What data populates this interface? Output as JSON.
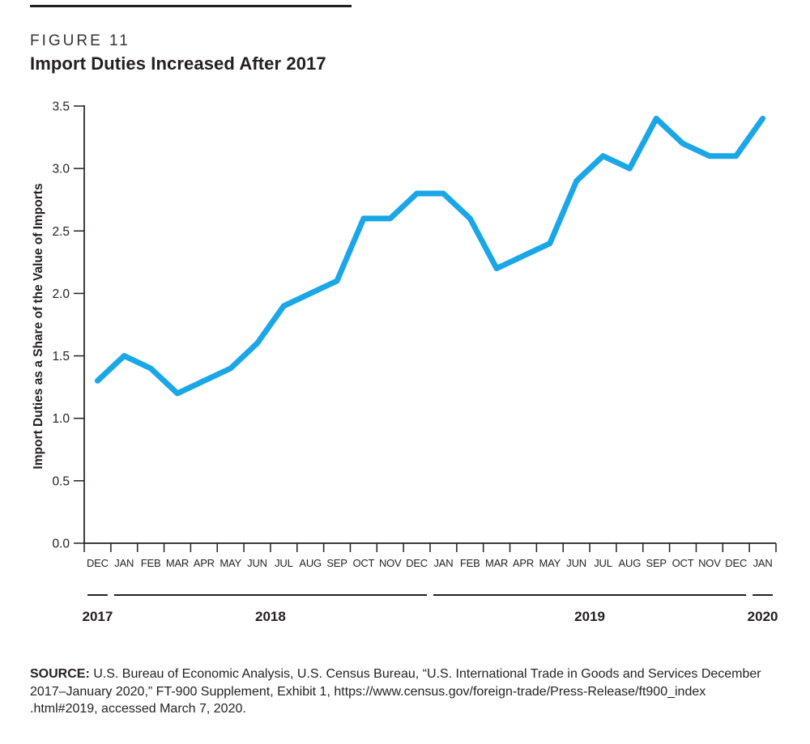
{
  "figure": {
    "label": "FIGURE 11",
    "title": "Import Duties Increased After 2017"
  },
  "chart_data": {
    "type": "line",
    "x": [
      "DEC",
      "JAN",
      "FEB",
      "MAR",
      "APR",
      "MAY",
      "JUN",
      "JUL",
      "AUG",
      "SEP",
      "OCT",
      "NOV",
      "DEC",
      "JAN",
      "FEB",
      "MAR",
      "APR",
      "MAY",
      "JUN",
      "JUL",
      "AUG",
      "SEP",
      "OCT",
      "NOV",
      "DEC",
      "JAN"
    ],
    "values": [
      1.3,
      1.5,
      1.4,
      1.2,
      1.3,
      1.4,
      1.6,
      1.9,
      2.0,
      2.1,
      2.6,
      2.6,
      2.8,
      2.8,
      2.6,
      2.2,
      2.3,
      2.4,
      2.9,
      3.1,
      3.0,
      3.4,
      3.2,
      3.1,
      3.1,
      3.4
    ],
    "title": "Import Duties Increased After 2017",
    "xlabel": "",
    "ylabel": "Import Duties as a Share of the Value of Imports",
    "ylim": [
      0.0,
      3.5
    ],
    "y_ticks": [
      "0.0",
      "0.5",
      "1.0",
      "1.5",
      "2.0",
      "2.5",
      "3.0",
      "3.5"
    ],
    "year_groups": [
      {
        "label": "2017",
        "start": 0,
        "count": 1
      },
      {
        "label": "2018",
        "start": 1,
        "count": 12
      },
      {
        "label": "2019",
        "start": 13,
        "count": 12
      },
      {
        "label": "2020",
        "start": 25,
        "count": 1
      }
    ],
    "legend": "none",
    "grid": "off",
    "line_color": "#1aa7e8",
    "axis_color": "#231f20"
  },
  "source": {
    "label": "SOURCE:",
    "lines": [
      "U.S. Bureau of Economic Analysis, U.S. Census Bureau, “U.S. International Trade in Goods and Services December",
      "2017–January 2020,” FT-900 Supplement, Exhibit 1, https://www.census.gov/foreign-trade/Press-Release/ft900_index",
      ".html#2019, accessed March 7, 2020."
    ]
  }
}
